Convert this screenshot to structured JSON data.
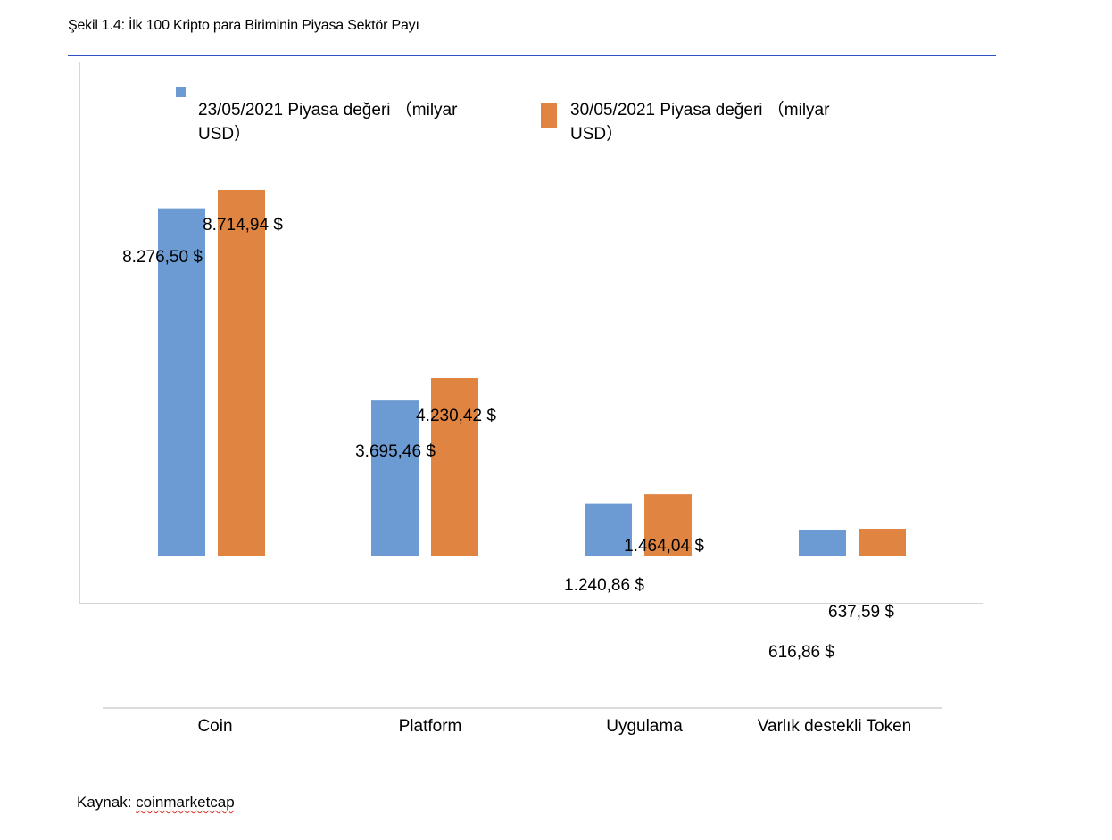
{
  "figure": {
    "caption": "Şekil 1.4: İlk 100 Kripto para Biriminin Piyasa Sektör Payı",
    "source_label": "Kaynak: ",
    "source_link": "coinmarketcap"
  },
  "colors": {
    "series1": "#6b9bd2",
    "series2": "#e08442",
    "frame": "#d6d6d6",
    "caption_rule": "#2f4fc4"
  },
  "legend": {
    "series1_line1": "23/05/2021 Piyasa değeri （milyar",
    "series1_line2": "USD）",
    "series2_line1": "30/05/2021 Piyasa değeri （milyar",
    "series2_line2": "USD）"
  },
  "chart_data": {
    "type": "bar",
    "title": "",
    "xlabel": "",
    "ylabel": "",
    "categories": [
      "Coin",
      "Platform",
      "Uygulama",
      "Varlık destekli Token"
    ],
    "series": [
      {
        "name": "23/05/2021 Piyasa değeri （milyar USD）",
        "values": [
          8276.5,
          3695.46,
          1240.86,
          616.86
        ],
        "labels": [
          "8.276,50 $",
          "3.695,46 $",
          "1.240,86 $",
          "616,86 $"
        ]
      },
      {
        "name": "30/05/2021 Piyasa değeri （milyar USD）",
        "values": [
          8714.94,
          4230.42,
          1464.04,
          637.59
        ],
        "labels": [
          "8.714,94 $",
          "4.230,42 $",
          "1.464,04 $",
          "637,59 $"
        ]
      }
    ],
    "ylim": [
      0,
      8714.94
    ],
    "grid": false,
    "legend_position": "top"
  }
}
